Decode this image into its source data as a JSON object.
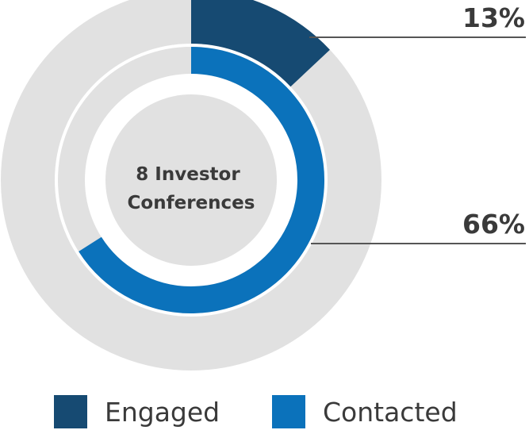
{
  "chart_data": {
    "type": "pie",
    "center_label": [
      "8 Investor",
      "Conferences"
    ],
    "series": [
      {
        "name": "Engaged",
        "value": 13,
        "label": "13%",
        "color": "#164a72",
        "ring": "outer"
      },
      {
        "name": "Contacted",
        "value": 66,
        "label": "66%",
        "color": "#0b72bb",
        "ring": "inner"
      }
    ],
    "track_color": "#e1e1e1",
    "center_color": "#e1e1e1",
    "leader_color": "#555555",
    "legend_position": "bottom",
    "legend": [
      {
        "label": "Engaged",
        "color": "#164a72"
      },
      {
        "label": "Contacted",
        "color": "#0b72bb"
      }
    ]
  }
}
